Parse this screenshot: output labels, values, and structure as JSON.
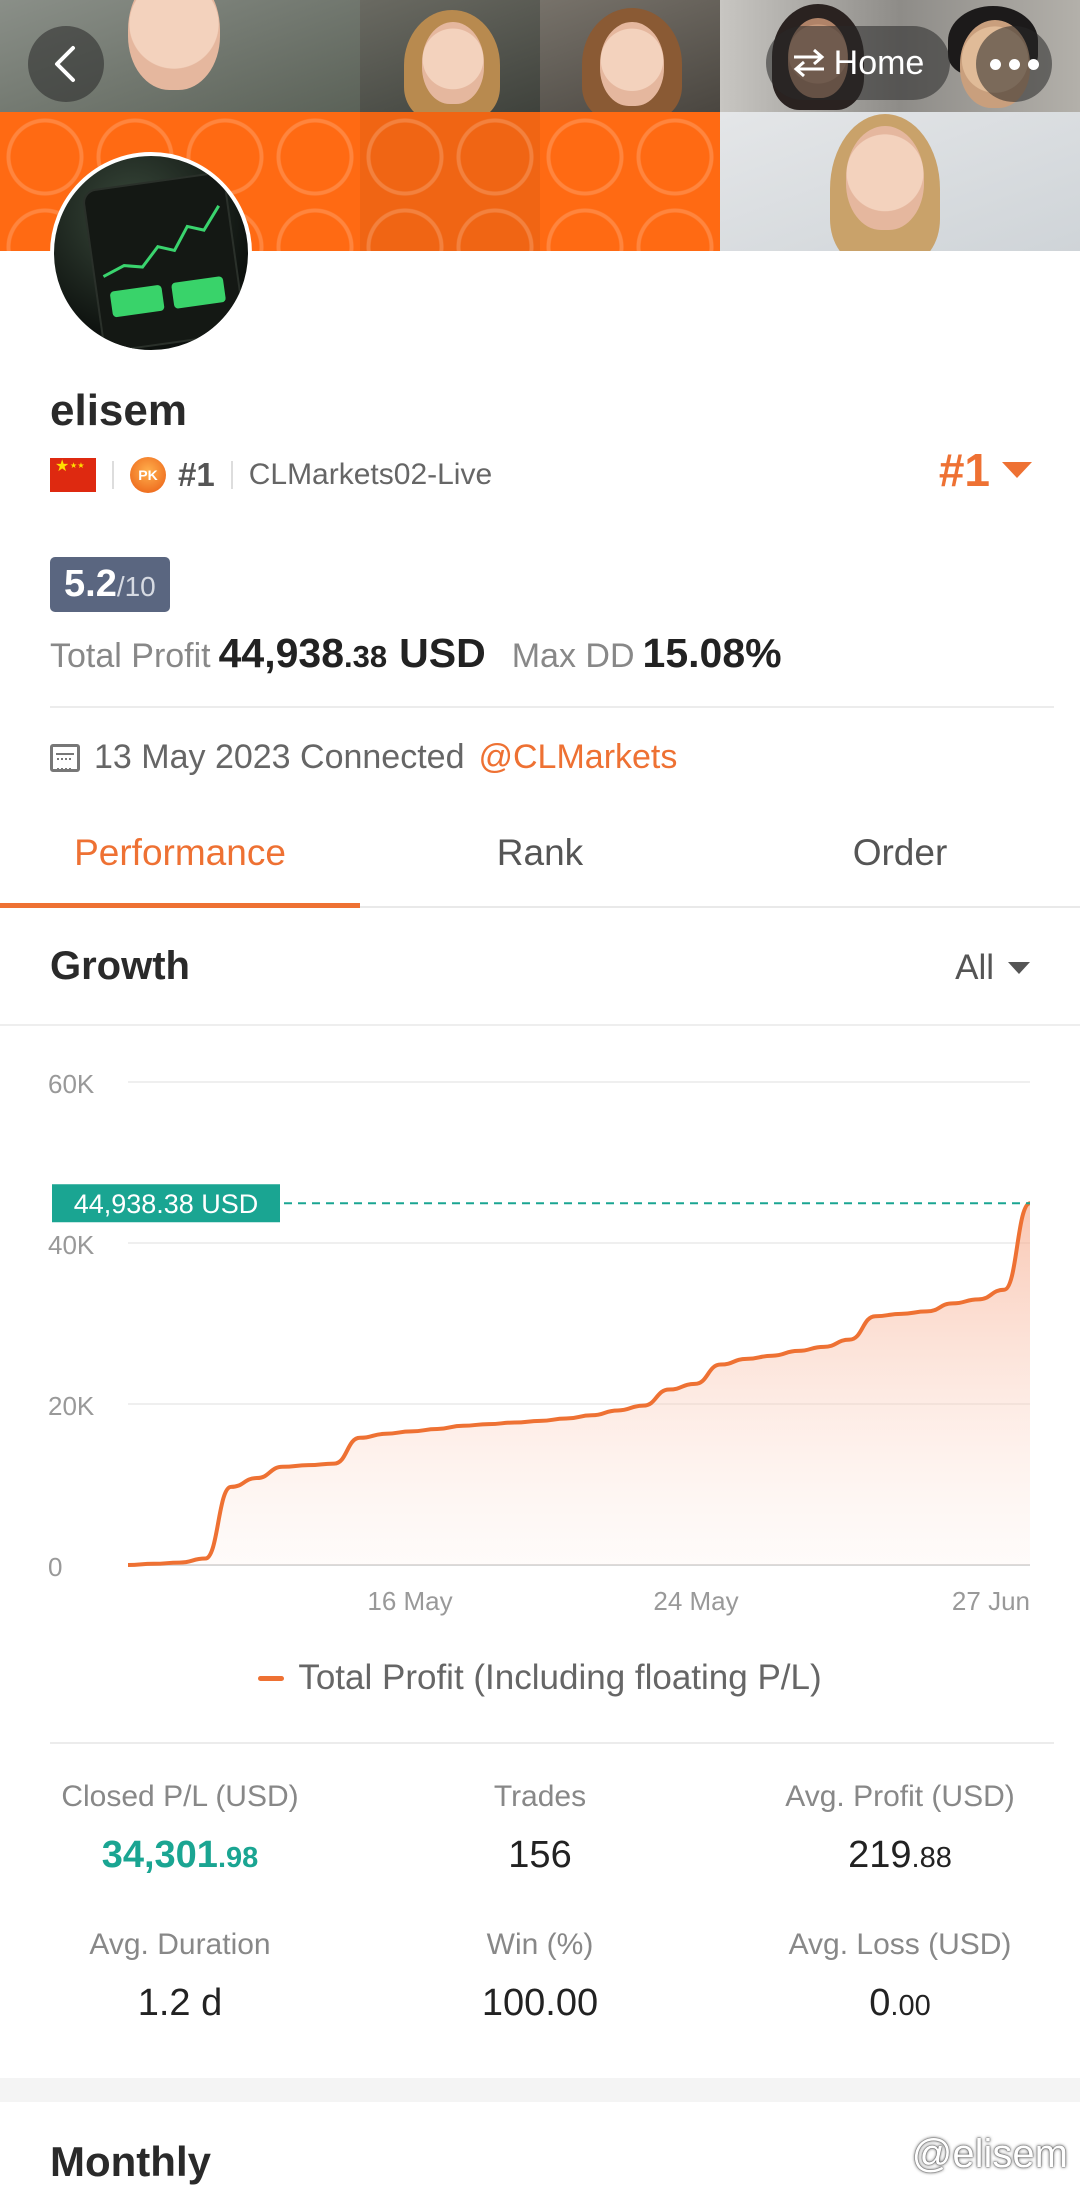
{
  "header": {
    "back_icon": "chevron-left-icon",
    "home_label": "Home",
    "home_icon": "swap-arrows-icon",
    "more_icon": "more-dots-icon"
  },
  "profile": {
    "username": "elisem",
    "flag": "china-flag-icon",
    "badge": "PK",
    "rank_small": "#1",
    "server": "CLMarkets02-Live",
    "rank_big": "#1",
    "score_value": "5.2",
    "score_max": "/10",
    "total_profit_label": "Total Profit",
    "total_profit_int": "44,938",
    "total_profit_dec": ".38",
    "total_profit_cur": "USD",
    "max_dd_label": "Max DD",
    "max_dd_value": "15.08%",
    "connected_text": "13 May 2023 Connected",
    "broker_handle": "@CLMarkets"
  },
  "tabs": [
    {
      "label": "Performance",
      "active": true
    },
    {
      "label": "Rank",
      "active": false
    },
    {
      "label": "Order",
      "active": false
    }
  ],
  "growth": {
    "title": "Growth",
    "filter": "All"
  },
  "chart_data": {
    "type": "area",
    "title": "",
    "y_ticks": [
      "60K",
      "40K",
      "20K",
      "0"
    ],
    "ylim": [
      0,
      60000
    ],
    "x_ticks": [
      "16 May",
      "24 May",
      "27 Jun"
    ],
    "current_label": "44,938.38 USD",
    "current_value": 44938.38,
    "series": [
      {
        "name": "Total Profit (Including floating P/L)",
        "color": "#ee7133",
        "values": [
          0,
          150,
          300,
          800,
          9700,
          10800,
          12200,
          12400,
          12600,
          15800,
          16300,
          16600,
          16900,
          17300,
          17500,
          17700,
          17900,
          18200,
          18600,
          19200,
          19800,
          21800,
          22500,
          24900,
          25600,
          26000,
          26600,
          27100,
          28000,
          30900,
          31200,
          31500,
          32500,
          33000,
          34200,
          44938.38
        ]
      }
    ],
    "grid": true,
    "legend": "bottom-center"
  },
  "stats": [
    {
      "label": "Closed P/L (USD)",
      "int": "34,301",
      "dec": ".98",
      "style": "green"
    },
    {
      "label": "Trades",
      "int": "156",
      "dec": "",
      "style": "normal"
    },
    {
      "label": "Avg. Profit (USD)",
      "int": "219",
      "dec": ".88",
      "style": "normal"
    },
    {
      "label": "Avg. Duration",
      "int": "1.2 d",
      "dec": "",
      "style": "normal"
    },
    {
      "label": "Win (%)",
      "int": "100.00",
      "dec": "",
      "style": "normal"
    },
    {
      "label": "Avg. Loss (USD)",
      "int": "0",
      "dec": ".00",
      "style": "normal"
    }
  ],
  "monthly": {
    "title": "Monthly"
  },
  "watermark": "@elisem",
  "colors": {
    "accent": "#ee7133",
    "green": "#1aa592",
    "score_bg": "#5a6680"
  }
}
